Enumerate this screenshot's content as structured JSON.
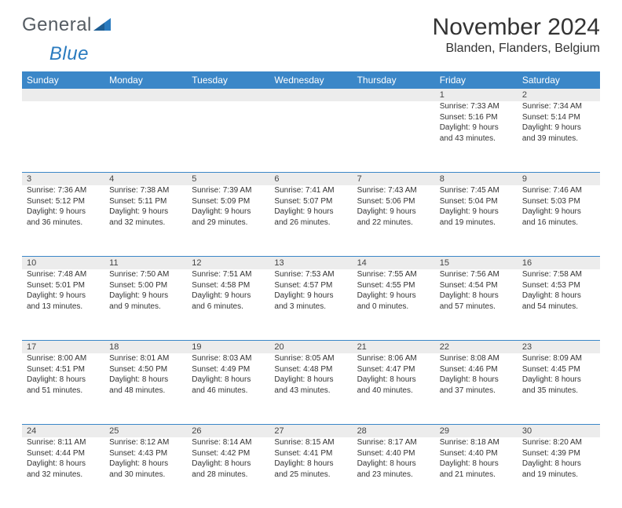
{
  "brand": {
    "general": "General",
    "blue": "Blue"
  },
  "title": "November 2024",
  "location": "Blanden, Flanders, Belgium",
  "colors": {
    "header_bg": "#3b87c8",
    "header_text": "#ffffff",
    "daynum_bg": "#ececec",
    "rule": "#3b87c8",
    "text": "#333333"
  },
  "weekdays": [
    "Sunday",
    "Monday",
    "Tuesday",
    "Wednesday",
    "Thursday",
    "Friday",
    "Saturday"
  ],
  "weeks": [
    {
      "nums": [
        "",
        "",
        "",
        "",
        "",
        "1",
        "2"
      ],
      "cells": [
        null,
        null,
        null,
        null,
        null,
        {
          "sunrise": "Sunrise: 7:33 AM",
          "sunset": "Sunset: 5:16 PM",
          "day1": "Daylight: 9 hours",
          "day2": "and 43 minutes."
        },
        {
          "sunrise": "Sunrise: 7:34 AM",
          "sunset": "Sunset: 5:14 PM",
          "day1": "Daylight: 9 hours",
          "day2": "and 39 minutes."
        }
      ]
    },
    {
      "nums": [
        "3",
        "4",
        "5",
        "6",
        "7",
        "8",
        "9"
      ],
      "cells": [
        {
          "sunrise": "Sunrise: 7:36 AM",
          "sunset": "Sunset: 5:12 PM",
          "day1": "Daylight: 9 hours",
          "day2": "and 36 minutes."
        },
        {
          "sunrise": "Sunrise: 7:38 AM",
          "sunset": "Sunset: 5:11 PM",
          "day1": "Daylight: 9 hours",
          "day2": "and 32 minutes."
        },
        {
          "sunrise": "Sunrise: 7:39 AM",
          "sunset": "Sunset: 5:09 PM",
          "day1": "Daylight: 9 hours",
          "day2": "and 29 minutes."
        },
        {
          "sunrise": "Sunrise: 7:41 AM",
          "sunset": "Sunset: 5:07 PM",
          "day1": "Daylight: 9 hours",
          "day2": "and 26 minutes."
        },
        {
          "sunrise": "Sunrise: 7:43 AM",
          "sunset": "Sunset: 5:06 PM",
          "day1": "Daylight: 9 hours",
          "day2": "and 22 minutes."
        },
        {
          "sunrise": "Sunrise: 7:45 AM",
          "sunset": "Sunset: 5:04 PM",
          "day1": "Daylight: 9 hours",
          "day2": "and 19 minutes."
        },
        {
          "sunrise": "Sunrise: 7:46 AM",
          "sunset": "Sunset: 5:03 PM",
          "day1": "Daylight: 9 hours",
          "day2": "and 16 minutes."
        }
      ]
    },
    {
      "nums": [
        "10",
        "11",
        "12",
        "13",
        "14",
        "15",
        "16"
      ],
      "cells": [
        {
          "sunrise": "Sunrise: 7:48 AM",
          "sunset": "Sunset: 5:01 PM",
          "day1": "Daylight: 9 hours",
          "day2": "and 13 minutes."
        },
        {
          "sunrise": "Sunrise: 7:50 AM",
          "sunset": "Sunset: 5:00 PM",
          "day1": "Daylight: 9 hours",
          "day2": "and 9 minutes."
        },
        {
          "sunrise": "Sunrise: 7:51 AM",
          "sunset": "Sunset: 4:58 PM",
          "day1": "Daylight: 9 hours",
          "day2": "and 6 minutes."
        },
        {
          "sunrise": "Sunrise: 7:53 AM",
          "sunset": "Sunset: 4:57 PM",
          "day1": "Daylight: 9 hours",
          "day2": "and 3 minutes."
        },
        {
          "sunrise": "Sunrise: 7:55 AM",
          "sunset": "Sunset: 4:55 PM",
          "day1": "Daylight: 9 hours",
          "day2": "and 0 minutes."
        },
        {
          "sunrise": "Sunrise: 7:56 AM",
          "sunset": "Sunset: 4:54 PM",
          "day1": "Daylight: 8 hours",
          "day2": "and 57 minutes."
        },
        {
          "sunrise": "Sunrise: 7:58 AM",
          "sunset": "Sunset: 4:53 PM",
          "day1": "Daylight: 8 hours",
          "day2": "and 54 minutes."
        }
      ]
    },
    {
      "nums": [
        "17",
        "18",
        "19",
        "20",
        "21",
        "22",
        "23"
      ],
      "cells": [
        {
          "sunrise": "Sunrise: 8:00 AM",
          "sunset": "Sunset: 4:51 PM",
          "day1": "Daylight: 8 hours",
          "day2": "and 51 minutes."
        },
        {
          "sunrise": "Sunrise: 8:01 AM",
          "sunset": "Sunset: 4:50 PM",
          "day1": "Daylight: 8 hours",
          "day2": "and 48 minutes."
        },
        {
          "sunrise": "Sunrise: 8:03 AM",
          "sunset": "Sunset: 4:49 PM",
          "day1": "Daylight: 8 hours",
          "day2": "and 46 minutes."
        },
        {
          "sunrise": "Sunrise: 8:05 AM",
          "sunset": "Sunset: 4:48 PM",
          "day1": "Daylight: 8 hours",
          "day2": "and 43 minutes."
        },
        {
          "sunrise": "Sunrise: 8:06 AM",
          "sunset": "Sunset: 4:47 PM",
          "day1": "Daylight: 8 hours",
          "day2": "and 40 minutes."
        },
        {
          "sunrise": "Sunrise: 8:08 AM",
          "sunset": "Sunset: 4:46 PM",
          "day1": "Daylight: 8 hours",
          "day2": "and 37 minutes."
        },
        {
          "sunrise": "Sunrise: 8:09 AM",
          "sunset": "Sunset: 4:45 PM",
          "day1": "Daylight: 8 hours",
          "day2": "and 35 minutes."
        }
      ]
    },
    {
      "nums": [
        "24",
        "25",
        "26",
        "27",
        "28",
        "29",
        "30"
      ],
      "cells": [
        {
          "sunrise": "Sunrise: 8:11 AM",
          "sunset": "Sunset: 4:44 PM",
          "day1": "Daylight: 8 hours",
          "day2": "and 32 minutes."
        },
        {
          "sunrise": "Sunrise: 8:12 AM",
          "sunset": "Sunset: 4:43 PM",
          "day1": "Daylight: 8 hours",
          "day2": "and 30 minutes."
        },
        {
          "sunrise": "Sunrise: 8:14 AM",
          "sunset": "Sunset: 4:42 PM",
          "day1": "Daylight: 8 hours",
          "day2": "and 28 minutes."
        },
        {
          "sunrise": "Sunrise: 8:15 AM",
          "sunset": "Sunset: 4:41 PM",
          "day1": "Daylight: 8 hours",
          "day2": "and 25 minutes."
        },
        {
          "sunrise": "Sunrise: 8:17 AM",
          "sunset": "Sunset: 4:40 PM",
          "day1": "Daylight: 8 hours",
          "day2": "and 23 minutes."
        },
        {
          "sunrise": "Sunrise: 8:18 AM",
          "sunset": "Sunset: 4:40 PM",
          "day1": "Daylight: 8 hours",
          "day2": "and 21 minutes."
        },
        {
          "sunrise": "Sunrise: 8:20 AM",
          "sunset": "Sunset: 4:39 PM",
          "day1": "Daylight: 8 hours",
          "day2": "and 19 minutes."
        }
      ]
    }
  ]
}
